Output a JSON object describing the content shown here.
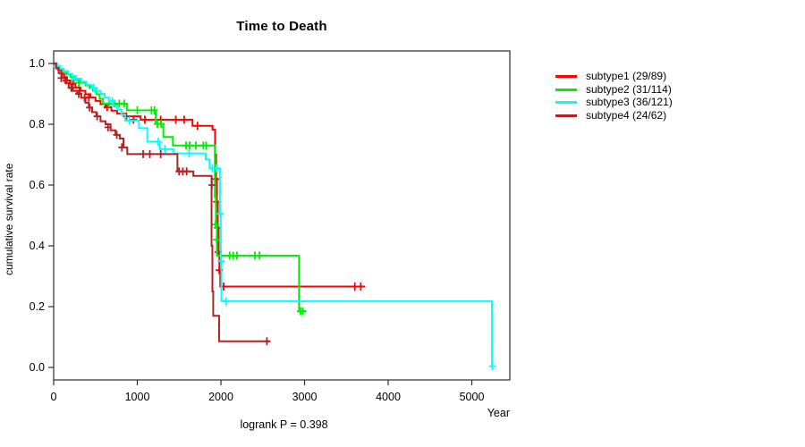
{
  "title": "Time to Death",
  "x_axis_label": "Year",
  "y_axis_label": "cumulative survival rate",
  "annotation": "logrank P = 0.398",
  "chart_data": {
    "type": "line",
    "variant": "kaplan-meier-step",
    "title": "Time to Death",
    "xlabel": "Year",
    "ylabel": "cumulative survival rate",
    "annotation": "logrank P = 0.398",
    "xlim": [
      0,
      5455
    ],
    "ylim": [
      -0.04,
      1.04
    ],
    "x_ticks": [
      0,
      1000,
      2000,
      3000,
      4000,
      5000
    ],
    "y_ticks": [
      0.0,
      0.2,
      0.4,
      0.6,
      0.8,
      1.0
    ],
    "grid": false,
    "legend_position": "right-outside",
    "axis_color": "#2b2b2b",
    "series": [
      {
        "name": "subtype1 (29/89)",
        "color": "#ff0000",
        "end_time": 3725,
        "steps": [
          [
            0,
            1.0
          ],
          [
            25,
            0.989
          ],
          [
            55,
            0.978
          ],
          [
            90,
            0.966
          ],
          [
            125,
            0.955
          ],
          [
            160,
            0.944
          ],
          [
            200,
            0.933
          ],
          [
            260,
            0.921
          ],
          [
            320,
            0.91
          ],
          [
            380,
            0.899
          ],
          [
            440,
            0.888
          ],
          [
            500,
            0.877
          ],
          [
            560,
            0.866
          ],
          [
            620,
            0.856
          ],
          [
            690,
            0.845
          ],
          [
            760,
            0.835
          ],
          [
            850,
            0.826
          ],
          [
            1040,
            0.815
          ],
          [
            1660,
            0.795
          ],
          [
            1900,
            0.782
          ],
          [
            1930,
            0.7
          ],
          [
            1942,
            0.62
          ],
          [
            1952,
            0.545
          ],
          [
            1962,
            0.46
          ],
          [
            1972,
            0.38
          ],
          [
            1982,
            0.32
          ],
          [
            1992,
            0.266
          ]
        ],
        "censors": [
          [
            150,
            0.944
          ],
          [
            230,
            0.933
          ],
          [
            310,
            0.91
          ],
          [
            420,
            0.888
          ],
          [
            640,
            0.856
          ],
          [
            870,
            0.826
          ],
          [
            955,
            0.815
          ],
          [
            1090,
            0.815
          ],
          [
            1280,
            0.815
          ],
          [
            1460,
            0.815
          ],
          [
            1560,
            0.815
          ],
          [
            1720,
            0.795
          ],
          [
            1938,
            0.62
          ],
          [
            1950,
            0.545
          ],
          [
            1960,
            0.46
          ],
          [
            1970,
            0.38
          ],
          [
            1980,
            0.32
          ],
          [
            2032,
            0.266
          ],
          [
            3601,
            0.266
          ],
          [
            3672,
            0.266
          ]
        ]
      },
      {
        "name": "subtype2 (31/114)",
        "color": "#00ee00",
        "end_time": 3010,
        "steps": [
          [
            0,
            1.0
          ],
          [
            35,
            0.991
          ],
          [
            70,
            0.982
          ],
          [
            110,
            0.973
          ],
          [
            150,
            0.964
          ],
          [
            200,
            0.955
          ],
          [
            260,
            0.946
          ],
          [
            320,
            0.937
          ],
          [
            380,
            0.928
          ],
          [
            430,
            0.919
          ],
          [
            470,
            0.91
          ],
          [
            510,
            0.899
          ],
          [
            550,
            0.884
          ],
          [
            590,
            0.868
          ],
          [
            875,
            0.846
          ],
          [
            1220,
            0.801
          ],
          [
            1312,
            0.758
          ],
          [
            1426,
            0.73
          ],
          [
            1928,
            0.56
          ],
          [
            1940,
            0.47
          ],
          [
            1952,
            0.368
          ],
          [
            2934,
            0.185
          ]
        ],
        "censors": [
          [
            300,
            0.937
          ],
          [
            660,
            0.868
          ],
          [
            725,
            0.868
          ],
          [
            785,
            0.868
          ],
          [
            845,
            0.868
          ],
          [
            1000,
            0.846
          ],
          [
            1170,
            0.846
          ],
          [
            1205,
            0.846
          ],
          [
            1240,
            0.801
          ],
          [
            1285,
            0.801
          ],
          [
            1583,
            0.73
          ],
          [
            1625,
            0.73
          ],
          [
            1700,
            0.73
          ],
          [
            1790,
            0.73
          ],
          [
            1822,
            0.73
          ],
          [
            1936,
            0.47
          ],
          [
            1948,
            0.42
          ],
          [
            2104,
            0.368
          ],
          [
            2146,
            0.368
          ],
          [
            2192,
            0.368
          ],
          [
            2406,
            0.368
          ],
          [
            2460,
            0.368
          ],
          [
            2952,
            0.185
          ],
          [
            2980,
            0.185
          ]
        ]
      },
      {
        "name": "subtype3 (36/121)",
        "color": "#00ffff",
        "end_time": 5255,
        "steps": [
          [
            0,
            1.0
          ],
          [
            40,
            0.992
          ],
          [
            80,
            0.983
          ],
          [
            120,
            0.975
          ],
          [
            170,
            0.966
          ],
          [
            220,
            0.958
          ],
          [
            270,
            0.95
          ],
          [
            330,
            0.94
          ],
          [
            390,
            0.93
          ],
          [
            450,
            0.92
          ],
          [
            510,
            0.91
          ],
          [
            560,
            0.9
          ],
          [
            610,
            0.888
          ],
          [
            660,
            0.876
          ],
          [
            710,
            0.862
          ],
          [
            760,
            0.848
          ],
          [
            810,
            0.832
          ],
          [
            855,
            0.812
          ],
          [
            1020,
            0.787
          ],
          [
            1120,
            0.743
          ],
          [
            1270,
            0.718
          ],
          [
            1430,
            0.704
          ],
          [
            1818,
            0.684
          ],
          [
            1864,
            0.655
          ],
          [
            1988,
            0.505
          ],
          [
            1998,
            0.35
          ],
          [
            2006,
            0.218
          ],
          [
            5241,
            0.004
          ]
        ],
        "censors": [
          [
            30,
            0.992
          ],
          [
            250,
            0.95
          ],
          [
            480,
            0.92
          ],
          [
            700,
            0.876
          ],
          [
            905,
            0.812
          ],
          [
            1250,
            0.743
          ],
          [
            1330,
            0.718
          ],
          [
            1620,
            0.704
          ],
          [
            1898,
            0.655
          ],
          [
            1946,
            0.655
          ],
          [
            1993,
            0.505
          ],
          [
            2002,
            0.35
          ],
          [
            2060,
            0.218
          ],
          [
            5246,
            0.004
          ]
        ]
      },
      {
        "name": "subtype4 (24/62)",
        "color": "#b22222",
        "end_time": 2590,
        "steps": [
          [
            0,
            1.0
          ],
          [
            30,
            0.984
          ],
          [
            60,
            0.968
          ],
          [
            100,
            0.952
          ],
          [
            140,
            0.936
          ],
          [
            180,
            0.92
          ],
          [
            230,
            0.91
          ],
          [
            280,
            0.9
          ],
          [
            330,
            0.887
          ],
          [
            380,
            0.871
          ],
          [
            420,
            0.855
          ],
          [
            460,
            0.84
          ],
          [
            510,
            0.826
          ],
          [
            560,
            0.81
          ],
          [
            620,
            0.8
          ],
          [
            680,
            0.78
          ],
          [
            740,
            0.765
          ],
          [
            790,
            0.753
          ],
          [
            835,
            0.724
          ],
          [
            880,
            0.702
          ],
          [
            1480,
            0.645
          ],
          [
            1670,
            0.63
          ],
          [
            1888,
            0.4
          ],
          [
            1898,
            0.25
          ],
          [
            1908,
            0.17
          ],
          [
            1978,
            0.086
          ]
        ],
        "censors": [
          [
            90,
            0.952
          ],
          [
            210,
            0.92
          ],
          [
            300,
            0.9
          ],
          [
            370,
            0.887
          ],
          [
            430,
            0.855
          ],
          [
            520,
            0.826
          ],
          [
            650,
            0.79
          ],
          [
            755,
            0.765
          ],
          [
            815,
            0.724
          ],
          [
            1070,
            0.702
          ],
          [
            1150,
            0.702
          ],
          [
            1280,
            0.702
          ],
          [
            1500,
            0.645
          ],
          [
            1545,
            0.645
          ],
          [
            1590,
            0.645
          ],
          [
            1892,
            0.6
          ],
          [
            2550,
            0.086
          ]
        ]
      }
    ]
  }
}
